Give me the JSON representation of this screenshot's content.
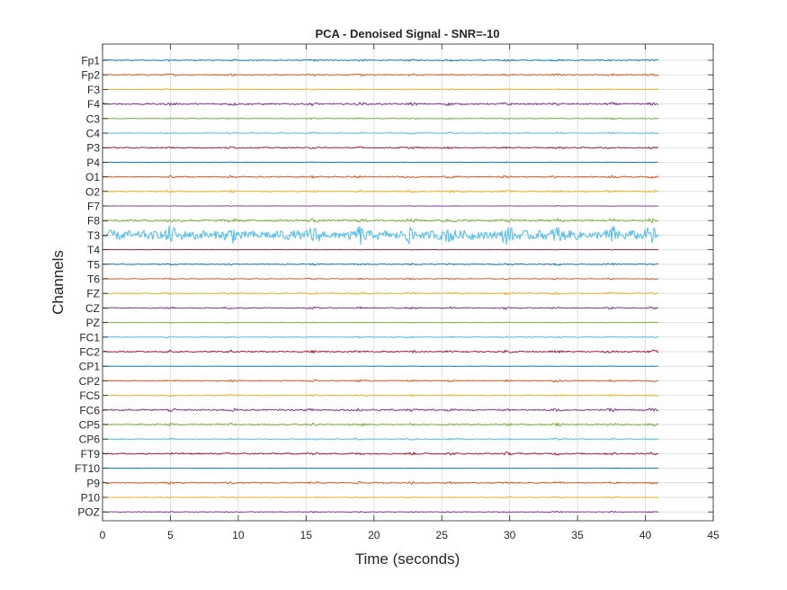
{
  "chart_data": {
    "type": "line",
    "title": "PCA - Denoised Signal - SNR=-10",
    "xlabel": "Time (seconds)",
    "ylabel": "Channels",
    "xlim": [
      0,
      45
    ],
    "xticks": [
      0,
      5,
      10,
      15,
      20,
      25,
      30,
      35,
      40,
      45
    ],
    "signal_end_time": 41,
    "grid": true,
    "channels": [
      "Fp1",
      "Fp2",
      "F3",
      "F4",
      "C3",
      "C4",
      "P3",
      "P4",
      "O1",
      "O2",
      "F7",
      "F8",
      "T3",
      "T4",
      "T5",
      "T6",
      "FZ",
      "CZ",
      "PZ",
      "FC1",
      "FC2",
      "CP1",
      "CP2",
      "FC5",
      "FC6",
      "CP5",
      "CP6",
      "FT9",
      "FT10",
      "P9",
      "P10",
      "POZ"
    ],
    "series_colors": [
      "#0072BD",
      "#D95319",
      "#EDB120",
      "#7E2F8E",
      "#77AC30",
      "#4DBEEE",
      "#A2142F"
    ],
    "relative_amplitude": [
      0.5,
      0.6,
      0.3,
      0.8,
      0.35,
      0.45,
      0.55,
      0.2,
      0.6,
      0.6,
      0.15,
      1.0,
      4.5,
      0.2,
      0.45,
      0.4,
      0.6,
      0.55,
      0.25,
      0.45,
      0.7,
      0.12,
      0.5,
      0.5,
      0.8,
      0.7,
      0.45,
      0.7,
      0.08,
      0.6,
      0.35,
      0.35
    ]
  }
}
